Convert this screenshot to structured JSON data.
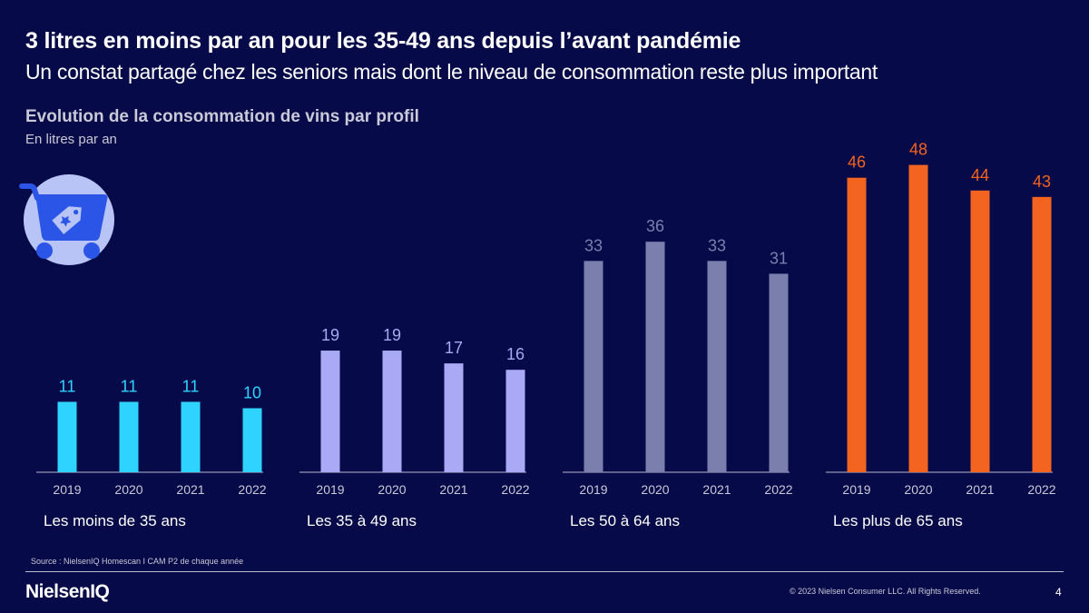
{
  "header": {
    "title": "3 litres en moins par an pour les 35-49 ans depuis l’avant pandémie",
    "subtitle": "Un constat partagé chez les seniors mais dont le niveau de consommation reste plus important"
  },
  "chart_header": {
    "title": "Evolution de la consommation de vins par profil",
    "unit": "En litres par an"
  },
  "badge": {
    "icon": "shopping-cart-tag-icon"
  },
  "chart_data": [
    {
      "type": "bar",
      "label": "Les moins de 35 ans",
      "categories": [
        "2019",
        "2020",
        "2021",
        "2022"
      ],
      "values": [
        11,
        11,
        11,
        10
      ],
      "color": "#2ed3ff"
    },
    {
      "type": "bar",
      "label": "Les 35 à 49 ans",
      "categories": [
        "2019",
        "2020",
        "2021",
        "2022"
      ],
      "values": [
        19,
        19,
        17,
        16
      ],
      "color": "#a9a9f5"
    },
    {
      "type": "bar",
      "label": "Les 50 à 64 ans",
      "categories": [
        "2019",
        "2020",
        "2021",
        "2022"
      ],
      "values": [
        33,
        36,
        33,
        31
      ],
      "color": "#7b7fae"
    },
    {
      "type": "bar",
      "label": "Les plus de 65 ans",
      "categories": [
        "2019",
        "2020",
        "2021",
        "2022"
      ],
      "values": [
        46,
        48,
        44,
        43
      ],
      "color": "#f2641f"
    }
  ],
  "footer": {
    "source": "Source : NielsenIQ Homescan I CAM P2 de chaque année",
    "logo": "NielsenIQ",
    "copyright": "© 2023 Nielsen Consumer LLC. All Rights Reserved.",
    "page": "4"
  }
}
